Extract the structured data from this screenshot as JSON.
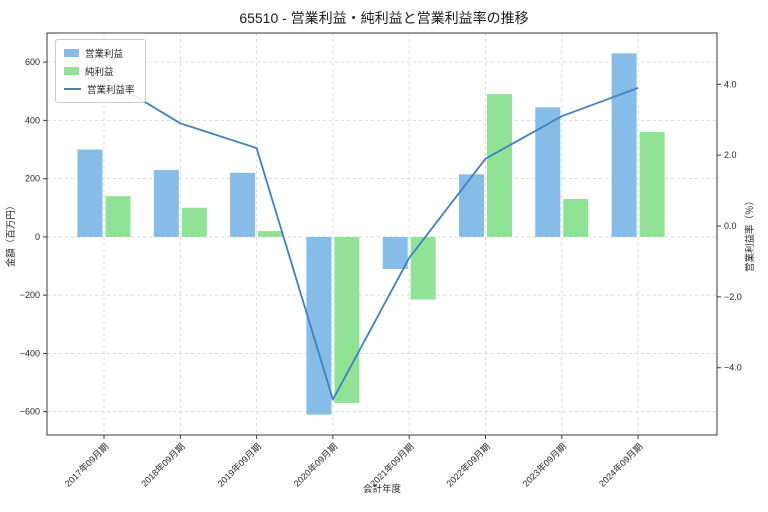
{
  "title": "65510 - 営業利益・純利益と営業利益率の推移",
  "chart_data": {
    "type": "bar",
    "title": "65510 - 営業利益・純利益と営業利益率の推移",
    "xlabel": "会計年度",
    "ylabel_left": "金額（百万円）",
    "ylabel_right": "営業利益率（％）",
    "categories": [
      "2017年09月期",
      "2018年09月期",
      "2019年09月期",
      "2020年09月期",
      "2021年09月期",
      "2022年09月期",
      "2023年09月期",
      "2024年09月期"
    ],
    "series": [
      {
        "name": "営業利益",
        "type": "bar",
        "axis": "left",
        "color": "#85bce8",
        "values": [
          300,
          230,
          220,
          -610,
          -110,
          215,
          445,
          630
        ]
      },
      {
        "name": "純利益",
        "type": "bar",
        "axis": "left",
        "color": "#90e295",
        "values": [
          140,
          100,
          20,
          -570,
          -215,
          490,
          130,
          360
        ]
      },
      {
        "name": "営業利益率",
        "type": "line",
        "axis": "right",
        "color": "#3d82c4",
        "values": [
          4.2,
          2.9,
          2.2,
          -4.9,
          -0.9,
          1.9,
          3.1,
          3.9
        ]
      }
    ],
    "ylim_left": [
      -680,
      700
    ],
    "ylim_right": [
      -5.9,
      5.45
    ],
    "yticks_left": [
      600,
      400,
      200,
      0,
      -200,
      -400,
      -600
    ],
    "ytick_labels_left": [
      "600",
      "400",
      "200",
      "0",
      "−200",
      "−400",
      "−600"
    ],
    "yticks_right": [
      4,
      2,
      0,
      -2,
      -4
    ],
    "ytick_labels_right": [
      "4.0",
      "2.0",
      "0.0",
      "−2.0",
      "−4.0"
    ],
    "grid": true,
    "legend_position": "upper left"
  }
}
